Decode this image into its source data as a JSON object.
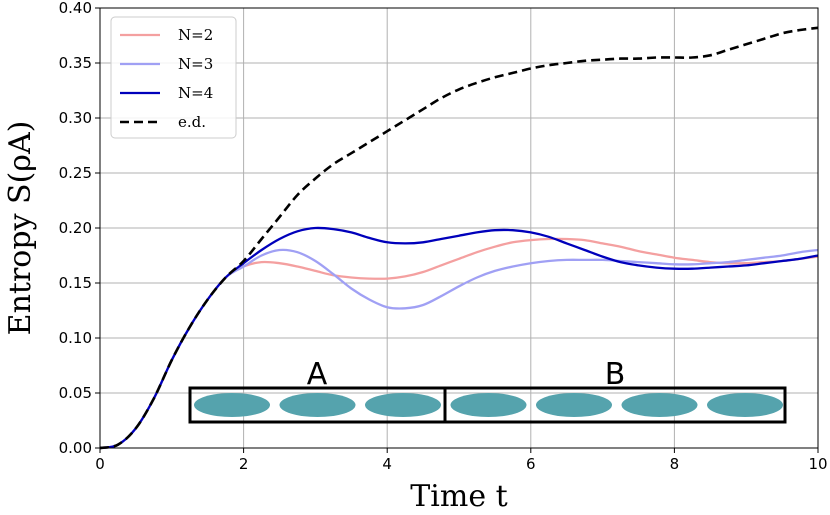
{
  "chart_data": {
    "type": "line",
    "xlabel": "Time t",
    "ylabel": "Entropy S(ρA)",
    "xlim": [
      0,
      10
    ],
    "ylim": [
      0,
      0.4
    ],
    "xticks": [
      "0",
      "2",
      "4",
      "6",
      "8",
      "10"
    ],
    "yticks": [
      "0.00",
      "0.05",
      "0.10",
      "0.15",
      "0.20",
      "0.25",
      "0.30",
      "0.35",
      "0.40"
    ],
    "grid": true,
    "legend_position": "top-left",
    "x": [
      0,
      0.25,
      0.5,
      0.75,
      1,
      1.25,
      1.5,
      1.75,
      2,
      2.25,
      2.5,
      2.75,
      3,
      3.25,
      3.5,
      3.75,
      4,
      4.25,
      4.5,
      4.75,
      5,
      5.25,
      5.5,
      5.75,
      6,
      6.25,
      6.5,
      6.75,
      7,
      7.25,
      7.5,
      7.75,
      8,
      8.25,
      8.5,
      8.75,
      9,
      9.25,
      9.5,
      9.75,
      10
    ],
    "series": [
      {
        "name": "N=2",
        "color": "#f4a0a0",
        "dash": "solid",
        "values": [
          0,
          0.003,
          0.018,
          0.045,
          0.08,
          0.11,
          0.135,
          0.155,
          0.165,
          0.169,
          0.168,
          0.165,
          0.161,
          0.157,
          0.155,
          0.154,
          0.154,
          0.156,
          0.16,
          0.166,
          0.172,
          0.178,
          0.183,
          0.187,
          0.189,
          0.19,
          0.19,
          0.189,
          0.186,
          0.183,
          0.179,
          0.176,
          0.173,
          0.171,
          0.169,
          0.168,
          0.168,
          0.169,
          0.17,
          0.172,
          0.174
        ]
      },
      {
        "name": "N=3",
        "color": "#a0a0f4",
        "dash": "solid",
        "values": [
          0,
          0.003,
          0.018,
          0.045,
          0.08,
          0.11,
          0.135,
          0.155,
          0.165,
          0.175,
          0.18,
          0.178,
          0.17,
          0.158,
          0.145,
          0.135,
          0.128,
          0.127,
          0.13,
          0.138,
          0.147,
          0.155,
          0.161,
          0.165,
          0.168,
          0.17,
          0.171,
          0.171,
          0.171,
          0.17,
          0.169,
          0.168,
          0.167,
          0.167,
          0.168,
          0.169,
          0.171,
          0.173,
          0.175,
          0.178,
          0.18
        ]
      },
      {
        "name": "N=4",
        "color": "#0000bb",
        "dash": "solid",
        "values": [
          0,
          0.003,
          0.018,
          0.045,
          0.08,
          0.11,
          0.135,
          0.155,
          0.168,
          0.18,
          0.19,
          0.197,
          0.2,
          0.199,
          0.196,
          0.191,
          0.187,
          0.186,
          0.187,
          0.19,
          0.193,
          0.196,
          0.198,
          0.198,
          0.196,
          0.192,
          0.186,
          0.18,
          0.174,
          0.169,
          0.166,
          0.164,
          0.163,
          0.163,
          0.164,
          0.165,
          0.166,
          0.168,
          0.17,
          0.172,
          0.175
        ]
      },
      {
        "name": "e.d.",
        "color": "#000000",
        "dash": "dashed",
        "values": [
          0,
          0.003,
          0.018,
          0.045,
          0.08,
          0.11,
          0.135,
          0.155,
          0.17,
          0.19,
          0.21,
          0.23,
          0.245,
          0.258,
          0.268,
          0.278,
          0.288,
          0.298,
          0.308,
          0.318,
          0.326,
          0.332,
          0.337,
          0.341,
          0.345,
          0.348,
          0.35,
          0.352,
          0.353,
          0.354,
          0.354,
          0.355,
          0.355,
          0.355,
          0.357,
          0.362,
          0.367,
          0.372,
          0.377,
          0.38,
          0.382
        ]
      }
    ]
  },
  "inset": {
    "group_labels": [
      "A",
      "B"
    ],
    "subsystem_sizes": [
      3,
      4
    ],
    "site_color": "#55a3ad"
  }
}
